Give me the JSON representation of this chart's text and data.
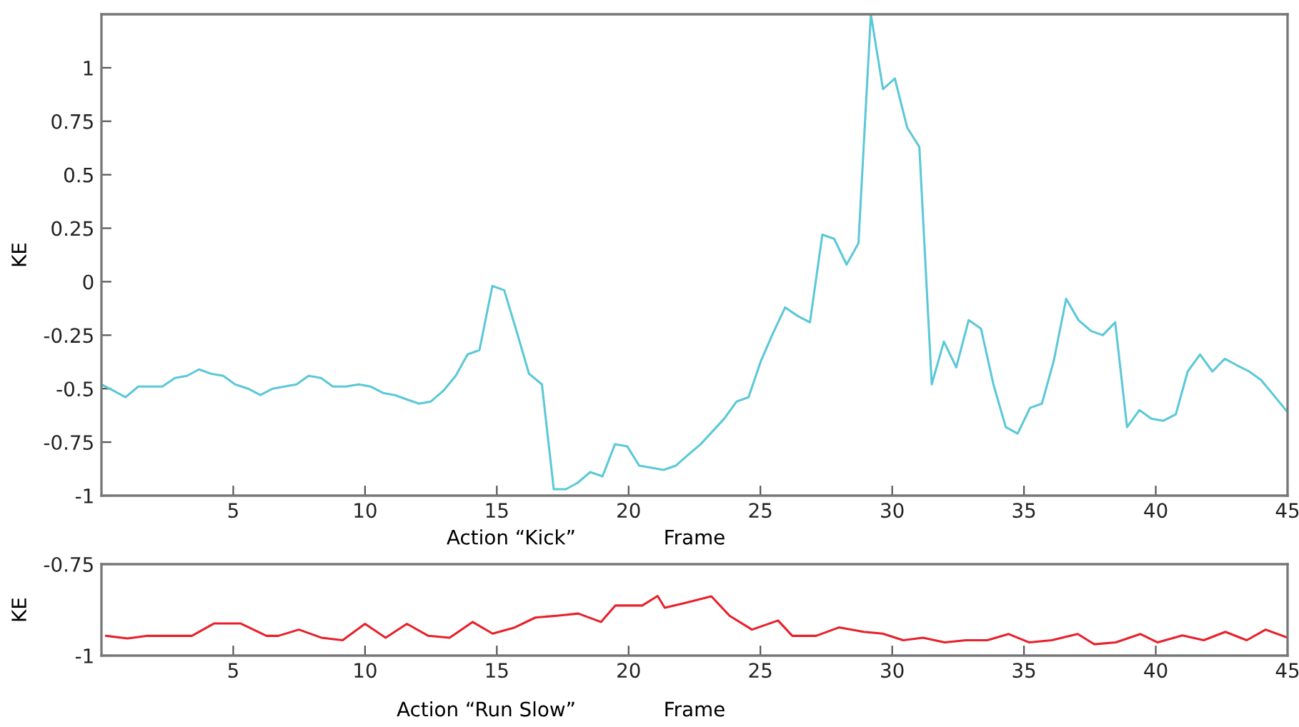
{
  "chart_data": [
    {
      "type": "line",
      "ylabel": "KE",
      "xlabel": "Frame",
      "annotations": [
        "Action “Kick”"
      ],
      "xlim": [
        0,
        45
      ],
      "xticks": [
        5,
        10,
        15,
        20,
        25,
        30,
        35,
        40,
        45
      ],
      "ylim": [
        -1,
        1.25
      ],
      "yticks": [
        -1,
        -0.75,
        -0.5,
        -0.25,
        0,
        0.25,
        0.5,
        0.75,
        1
      ],
      "line_style": "solid",
      "series": [
        {
          "color": "#5bc8d8",
          "x": [
            0,
            0.46,
            0.91,
            1.4,
            1.86,
            2.31,
            2.79,
            3.25,
            3.7,
            4.15,
            4.62,
            5.07,
            5.56,
            6.03,
            6.5,
            6.94,
            7.4,
            7.86,
            8.33,
            8.78,
            9.27,
            9.76,
            10.2,
            10.68,
            11.13,
            11.58,
            12.05,
            12.5,
            12.97,
            13.44,
            13.89,
            14.34,
            14.83,
            15.28,
            15.77,
            16.22,
            16.71,
            17.16,
            17.62,
            18.07,
            18.54,
            19.01,
            19.48,
            19.95,
            20.4,
            20.87,
            21.33,
            21.79,
            22.25,
            22.73,
            23.18,
            23.63,
            24.1,
            24.55,
            25.02,
            25.48,
            25.94,
            26.41,
            26.88,
            27.35,
            27.8,
            28.27,
            28.72,
            29.19,
            29.65,
            30.1,
            30.57,
            31.03,
            31.5,
            31.96,
            32.43,
            32.9,
            33.37,
            33.84,
            34.31,
            34.76,
            35.23,
            35.68,
            36.13,
            36.6,
            37.07,
            37.54,
            37.99,
            38.46,
            38.91,
            39.38,
            39.83,
            40.29,
            40.76,
            41.21,
            41.68,
            42.15,
            42.62,
            43.07,
            43.55,
            44,
            45
          ],
          "values": [
            -0.48,
            -0.51,
            -0.54,
            -0.49,
            -0.49,
            -0.49,
            -0.45,
            -0.44,
            -0.41,
            -0.43,
            -0.44,
            -0.48,
            -0.5,
            -0.53,
            -0.5,
            -0.49,
            -0.48,
            -0.44,
            -0.45,
            -0.49,
            -0.49,
            -0.48,
            -0.49,
            -0.52,
            -0.53,
            -0.55,
            -0.57,
            -0.56,
            -0.51,
            -0.44,
            -0.34,
            -0.32,
            -0.02,
            -0.04,
            -0.24,
            -0.43,
            -0.48,
            -0.97,
            -0.97,
            -0.94,
            -0.89,
            -0.91,
            -0.76,
            -0.77,
            -0.86,
            -0.87,
            -0.88,
            -0.86,
            -0.81,
            -0.76,
            -0.7,
            -0.64,
            -0.56,
            -0.54,
            -0.37,
            -0.24,
            -0.12,
            -0.16,
            -0.19,
            0.22,
            0.2,
            0.08,
            0.18,
            1.25,
            0.9,
            0.95,
            0.72,
            0.63,
            -0.48,
            -0.28,
            -0.4,
            -0.18,
            -0.22,
            -0.48,
            -0.68,
            -0.71,
            -0.59,
            -0.57,
            -0.37,
            -0.08,
            -0.18,
            -0.23,
            -0.25,
            -0.19,
            -0.68,
            -0.6,
            -0.64,
            -0.65,
            -0.62,
            -0.42,
            -0.34,
            -0.42,
            -0.36,
            -0.39,
            -0.42,
            -0.46,
            -0.61
          ]
        }
      ]
    },
    {
      "type": "line",
      "ylabel": "KE",
      "xlabel": "Frame",
      "annotations": [
        "Action “Run Slow”"
      ],
      "xlim": [
        0,
        45
      ],
      "xticks": [
        5,
        10,
        15,
        20,
        25,
        30,
        35,
        40,
        45
      ],
      "ylim": [
        -1,
        -0.75
      ],
      "yticks": [
        -1,
        -0.75
      ],
      "line_style": "solid",
      "series": [
        {
          "color": "#e8202a",
          "x": [
            0.18,
            0.99,
            1.75,
            3.43,
            4.28,
            5.27,
            6.26,
            6.71,
            7.49,
            8.34,
            9.15,
            10,
            10.78,
            11.59,
            12.4,
            13.21,
            14.08,
            14.84,
            15.65,
            16.46,
            17.27,
            18.09,
            18.95,
            19.5,
            20.52,
            21.1,
            21.37,
            22.15,
            23.14,
            23.83,
            24.68,
            25.67,
            26.21,
            27.11,
            27.98,
            28.92,
            29.64,
            30.42,
            31.17,
            31.99,
            32.8,
            33.61,
            34.42,
            35.2,
            36.05,
            37.04,
            37.67,
            38.48,
            39.42,
            40.07,
            41.01,
            41.82,
            42.64,
            43.45,
            44.17,
            45
          ],
          "values": [
            -0.946,
            -0.953,
            -0.946,
            -0.946,
            -0.912,
            -0.912,
            -0.946,
            -0.946,
            -0.929,
            -0.951,
            -0.958,
            -0.913,
            -0.951,
            -0.913,
            -0.946,
            -0.951,
            -0.908,
            -0.94,
            -0.924,
            -0.896,
            -0.891,
            -0.885,
            -0.908,
            -0.863,
            -0.863,
            -0.837,
            -0.869,
            -0.856,
            -0.838,
            -0.891,
            -0.929,
            -0.904,
            -0.946,
            -0.946,
            -0.923,
            -0.935,
            -0.94,
            -0.958,
            -0.951,
            -0.964,
            -0.958,
            -0.958,
            -0.941,
            -0.964,
            -0.958,
            -0.941,
            -0.969,
            -0.964,
            -0.941,
            -0.964,
            -0.945,
            -0.958,
            -0.935,
            -0.958,
            -0.929,
            -0.951
          ]
        }
      ]
    }
  ]
}
